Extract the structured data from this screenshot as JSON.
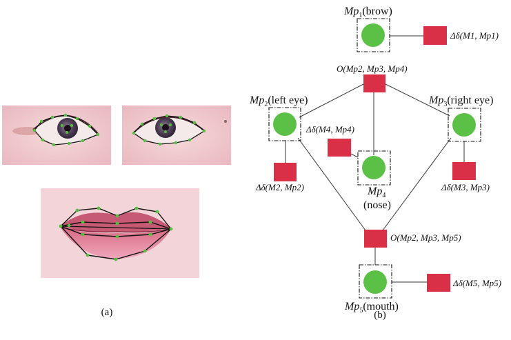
{
  "panel_a": {
    "caption": "(a)",
    "photos": [
      {
        "id": "left-eye-photo",
        "subject": "left eye with landmark contour"
      },
      {
        "id": "right-eye-photo",
        "subject": "right eye with landmark contour"
      },
      {
        "id": "mouth-photo",
        "subject": "lips with landmark contour"
      }
    ]
  },
  "panel_b": {
    "caption": "(b)",
    "variable_nodes": [
      {
        "id": "mp1",
        "label_main": "Mp",
        "label_sub": "1",
        "label_name": "(brow)"
      },
      {
        "id": "mp2",
        "label_main": "Mp",
        "label_sub": "2",
        "label_name": "(left eye)"
      },
      {
        "id": "mp3",
        "label_main": "Mp",
        "label_sub": "3",
        "label_name": "(right eye)"
      },
      {
        "id": "mp4",
        "label_main": "Mp",
        "label_sub": "4",
        "label_name": "(nose)"
      },
      {
        "id": "mp5",
        "label_main": "Mp",
        "label_sub": "5",
        "label_name": "(mouth)"
      }
    ],
    "factor_nodes": [
      {
        "id": "f1",
        "label": "Δδ(M1, Mp1)"
      },
      {
        "id": "f2",
        "label": "Δδ(M2, Mp2)"
      },
      {
        "id": "f3",
        "label": "Δδ(M3, Mp3)"
      },
      {
        "id": "f4",
        "label": "Δδ(M4, Mp4)"
      },
      {
        "id": "f5",
        "label": "Δδ(M5, Mp5)"
      },
      {
        "id": "o234",
        "label": "O(Mp2, Mp3, Mp4)"
      },
      {
        "id": "o235",
        "label": "O(Mp2, Mp3, Mp5)"
      }
    ],
    "edges": [
      [
        "mp1",
        "f1"
      ],
      [
        "mp2",
        "o234"
      ],
      [
        "mp3",
        "o234"
      ],
      [
        "mp4",
        "o234"
      ],
      [
        "mp2",
        "f2"
      ],
      [
        "mp3",
        "f3"
      ],
      [
        "mp4",
        "f4"
      ],
      [
        "mp2",
        "o235"
      ],
      [
        "mp3",
        "o235"
      ],
      [
        "mp5",
        "o235"
      ],
      [
        "mp5",
        "f5"
      ]
    ],
    "colors": {
      "variable_node": "#5bc046",
      "factor_node": "#d93048",
      "line": "#333333",
      "landmark": "#55c040",
      "contour": "#111111"
    }
  }
}
